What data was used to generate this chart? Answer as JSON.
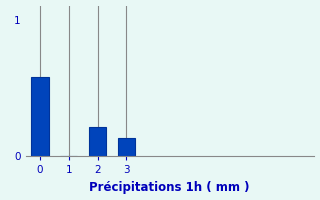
{
  "categories": [
    0,
    1,
    2,
    3
  ],
  "values": [
    0.58,
    0.0,
    0.21,
    0.13
  ],
  "bar_color": "#0044bb",
  "bar_edge_color": "#003399",
  "background_color": "#e8f8f5",
  "xlabel": "Précipitations 1h ( mm )",
  "ylim": [
    0,
    1.1
  ],
  "xlim": [
    -0.5,
    9.5
  ],
  "yticks": [
    0,
    1
  ],
  "xticks": [
    0,
    1,
    2,
    3
  ],
  "grid_color": "#888888",
  "xlabel_color": "#0000bb",
  "tick_label_color": "#0000bb",
  "xlabel_fontsize": 8.5,
  "tick_fontsize": 7.5,
  "bar_width": 0.6
}
